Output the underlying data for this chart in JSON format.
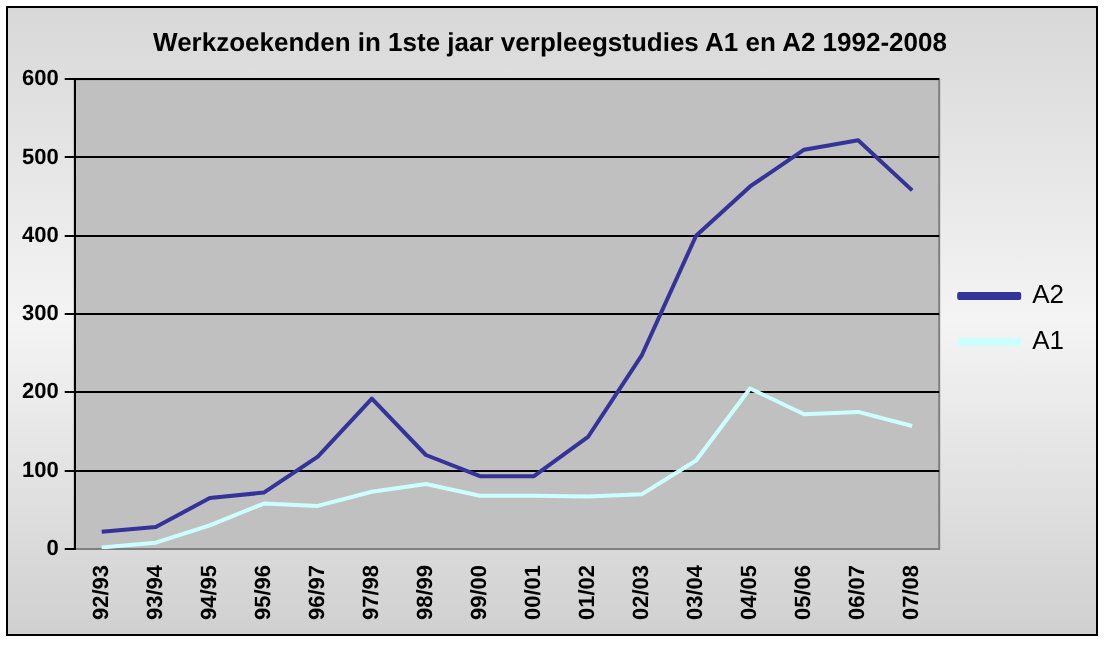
{
  "chart_data": {
    "type": "line",
    "title": "Werkzoekenden in 1ste jaar verpleegstudies A1 en A2 1992-2008",
    "categories": [
      "92/93",
      "93/94",
      "94/95",
      "95/96",
      "96/97",
      "97/98",
      "98/99",
      "99/00",
      "00/01",
      "01/02",
      "02/03",
      "03/04",
      "04/05",
      "05/06",
      "06/07",
      "07/08"
    ],
    "series": [
      {
        "name": "A2",
        "color": "#333399",
        "values": [
          22,
          28,
          65,
          72,
          118,
          192,
          120,
          93,
          93,
          143,
          248,
          400,
          463,
          510,
          522,
          458
        ]
      },
      {
        "name": "A1",
        "color": "#ccffff",
        "values": [
          2,
          8,
          30,
          58,
          55,
          73,
          83,
          68,
          68,
          67,
          70,
          113,
          205,
          172,
          175,
          157
        ]
      }
    ],
    "ylim": [
      0,
      600
    ],
    "yticks": [
      0,
      100,
      200,
      300,
      400,
      500,
      600
    ],
    "grid": "y",
    "legend": "right",
    "marker": "none"
  }
}
